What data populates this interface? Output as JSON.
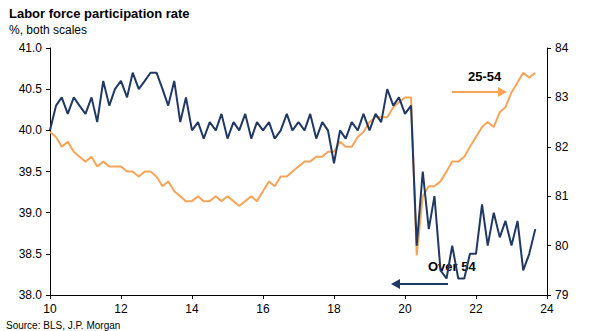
{
  "chart_data": {
    "type": "line",
    "title": "Labor force participation rate",
    "subtitle": "%, both scales",
    "source": "Source: BLS, J.P. Morgan",
    "grid": false,
    "x": [
      10,
      10.17,
      10.33,
      10.5,
      10.67,
      10.83,
      11,
      11.17,
      11.33,
      11.5,
      11.67,
      11.83,
      12,
      12.17,
      12.33,
      12.5,
      12.67,
      12.83,
      13,
      13.17,
      13.33,
      13.5,
      13.67,
      13.83,
      14,
      14.17,
      14.33,
      14.5,
      14.67,
      14.83,
      15,
      15.17,
      15.33,
      15.5,
      15.67,
      15.83,
      16,
      16.17,
      16.33,
      16.5,
      16.67,
      16.83,
      17,
      17.17,
      17.33,
      17.5,
      17.67,
      17.83,
      18,
      18.17,
      18.33,
      18.5,
      18.67,
      18.83,
      19,
      19.17,
      19.33,
      19.5,
      19.67,
      19.83,
      20,
      20.17,
      20.33,
      20.5,
      20.67,
      20.83,
      21,
      21.17,
      21.33,
      21.5,
      21.67,
      21.83,
      22,
      22.17,
      22.33,
      22.5,
      22.67,
      22.83,
      23,
      23.17,
      23.33,
      23.5,
      23.67
    ],
    "xlim": [
      10,
      24
    ],
    "xticks": [
      10,
      12,
      14,
      16,
      18,
      20,
      22,
      24
    ],
    "ylim": [
      38,
      41
    ],
    "yticks": [
      {
        "value": 38,
        "label": "38.0"
      },
      {
        "value": 38.5,
        "label": "38.5"
      },
      {
        "value": 39,
        "label": "39.0"
      },
      {
        "value": 39.5,
        "label": "39.5"
      },
      {
        "value": 40,
        "label": "40.0"
      },
      {
        "value": 40.5,
        "label": "40.5"
      },
      {
        "value": 41,
        "label": "41.0"
      }
    ],
    "y2lim": [
      79,
      84
    ],
    "y2ticks": [
      79,
      80,
      81,
      82,
      83,
      84
    ],
    "series": [
      {
        "name": "Over 54",
        "color": "#1f3864",
        "axis": "y",
        "values": [
          40.0,
          40.3,
          40.4,
          40.2,
          40.4,
          40.3,
          40.2,
          40.4,
          40.1,
          40.6,
          40.3,
          40.5,
          40.6,
          40.4,
          40.7,
          40.5,
          40.6,
          40.7,
          40.7,
          40.5,
          40.3,
          40.6,
          40.1,
          40.4,
          40.0,
          40.1,
          39.9,
          40.1,
          40.0,
          40.2,
          39.9,
          40.1,
          40.0,
          40.2,
          39.9,
          40.1,
          40.0,
          40.1,
          39.9,
          40.0,
          40.2,
          40.0,
          40.1,
          40.0,
          40.2,
          39.9,
          40.1,
          40.0,
          39.6,
          40.0,
          39.9,
          40.1,
          40.0,
          40.2,
          40.0,
          40.2,
          40.1,
          40.5,
          40.3,
          40.4,
          40.2,
          40.3,
          38.6,
          39.5,
          38.8,
          39.2,
          38.3,
          38.2,
          38.6,
          38.2,
          38.2,
          38.5,
          38.5,
          39.1,
          38.6,
          39.0,
          38.7,
          38.9,
          38.6,
          38.9,
          38.3,
          38.5,
          38.8
        ]
      },
      {
        "name": "25-54",
        "color": "#f5a55a",
        "axis": "y2",
        "values": [
          82.3,
          82.2,
          82.0,
          82.1,
          81.9,
          81.8,
          81.7,
          81.8,
          81.6,
          81.7,
          81.6,
          81.6,
          81.6,
          81.5,
          81.5,
          81.4,
          81.5,
          81.5,
          81.4,
          81.2,
          81.3,
          81.1,
          81.0,
          80.9,
          80.9,
          81.0,
          80.9,
          80.9,
          81.0,
          80.9,
          81.0,
          80.9,
          80.8,
          80.9,
          81.0,
          80.9,
          81.1,
          81.3,
          81.2,
          81.4,
          81.4,
          81.5,
          81.6,
          81.7,
          81.7,
          81.8,
          81.8,
          81.9,
          81.9,
          82.1,
          82.0,
          82.0,
          82.2,
          82.3,
          82.5,
          82.6,
          82.6,
          82.6,
          82.8,
          82.9,
          83.0,
          83.0,
          79.8,
          81.0,
          81.2,
          81.2,
          81.3,
          81.5,
          81.7,
          81.7,
          81.8,
          82.0,
          82.2,
          82.4,
          82.5,
          82.4,
          82.7,
          82.8,
          83.1,
          83.3,
          83.5,
          83.4,
          83.5
        ]
      }
    ]
  }
}
